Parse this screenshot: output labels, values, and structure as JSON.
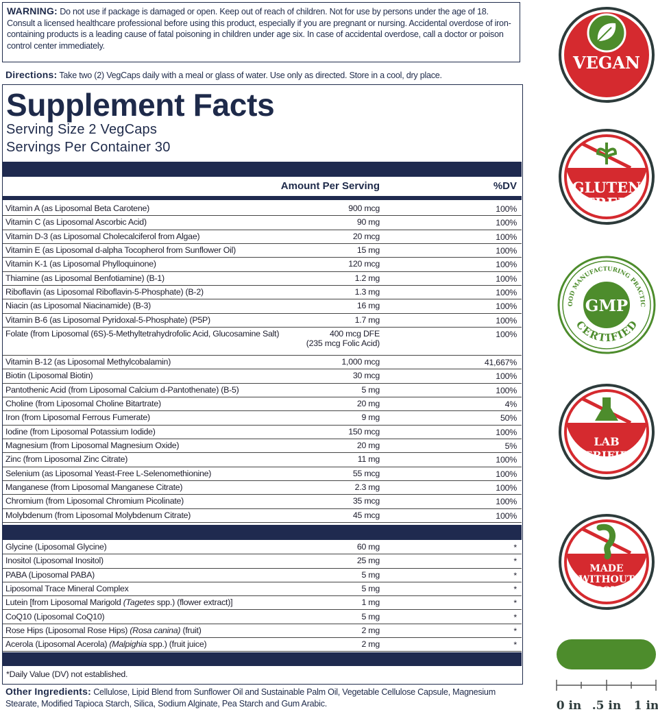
{
  "warning": {
    "label": "WARNING:",
    "text": "Do not use if package is damaged or open. Keep out of reach of children. Not for use by persons under the age of 18. Consult a licensed healthcare professional before using this product, especially if you are pregnant or nursing. Accidental overdose of iron-containing products is a leading cause of fatal poisoning in children under age six. In case of accidental overdose, call a doctor or poison control center immediately."
  },
  "directions": {
    "label": "Directions:",
    "text": "Take two (2) VegCaps daily with a meal or glass of water. Use only as directed. Store in a cool, dry place."
  },
  "facts": {
    "title": "Supplement Facts",
    "serving_size": "Serving Size 2 VegCaps",
    "servings_per_container": "Servings Per Container 30",
    "header_amount": "Amount Per Serving",
    "header_dv": "%DV",
    "section1": [
      {
        "name": "Vitamin A (as Liposomal Beta Carotene)",
        "amount": "900 mcg",
        "dv": "100%"
      },
      {
        "name": "Vitamin C (as Liposomal Ascorbic Acid)",
        "amount": "90 mg",
        "dv": "100%"
      },
      {
        "name": "Vitamin D-3 (as Liposomal Cholecalciferol from Algae)",
        "amount": "20 mcg",
        "dv": "100%"
      },
      {
        "name": "Vitamin E (as Liposomal d-alpha Tocopherol from Sunflower Oil)",
        "amount": "15 mg",
        "dv": "100%"
      },
      {
        "name": "Vitamin K-1 (as Liposomal Phylloquinone)",
        "amount": "120 mcg",
        "dv": "100%"
      },
      {
        "name": "Thiamine (as Liposomal Benfotiamine) (B-1)",
        "amount": "1.2 mg",
        "dv": "100%"
      },
      {
        "name": "Riboflavin (as Liposomal Riboflavin-5-Phosphate) (B-2)",
        "amount": "1.3 mg",
        "dv": "100%"
      },
      {
        "name": "Niacin (as Liposomal Niacinamide) (B-3)",
        "amount": "16 mg",
        "dv": "100%"
      },
      {
        "name": "Vitamin B-6 (as Liposomal Pyridoxal-5-Phosphate) (P5P)",
        "amount": "1.7 mg",
        "dv": "100%"
      },
      {
        "name": "Folate (from Liposomal (6S)-5-Methyltetrahydrofolic Acid, Glucosamine Salt)",
        "amount": "400 mcg DFE",
        "amount_note": "(235 mcg Folic Acid)",
        "dv": "100%"
      },
      {
        "name": "Vitamin B-12 (as Liposomal Methylcobalamin)",
        "amount": "1,000 mcg",
        "dv": "41,667%"
      },
      {
        "name": "Biotin (Liposomal Biotin)",
        "amount": "30 mcg",
        "dv": "100%"
      },
      {
        "name": "Pantothenic Acid (from Liposomal Calcium d-Pantothenate) (B-5)",
        "amount": "5 mg",
        "dv": "100%"
      },
      {
        "name": "Choline (from Liposomal Choline Bitartrate)",
        "amount": "20 mg",
        "dv": "4%"
      },
      {
        "name": "Iron (from Liposomal Ferrous Fumerate)",
        "amount": "9 mg",
        "dv": "50%"
      },
      {
        "name": "Iodine (from Liposomal Potassium Iodide)",
        "amount": "150 mcg",
        "dv": "100%"
      },
      {
        "name": "Magnesium (from Liposomal Magnesium Oxide)",
        "amount": "20 mg",
        "dv": "5%"
      },
      {
        "name": "Zinc (from Liposomal Zinc Citrate)",
        "amount": "11 mg",
        "dv": "100%"
      },
      {
        "name": "Selenium (as Liposomal Yeast-Free L-Selenomethionine)",
        "amount": "55 mcg",
        "dv": "100%"
      },
      {
        "name": "Manganese (from Liposomal Manganese Citrate)",
        "amount": "2.3 mg",
        "dv": "100%"
      },
      {
        "name": "Chromium (from Liposomal Chromium Picolinate)",
        "amount": "35 mcg",
        "dv": "100%"
      },
      {
        "name": "Molybdenum (from Liposomal Molybdenum Citrate)",
        "amount": "45 mcg",
        "dv": "100%"
      }
    ],
    "section2": [
      {
        "name": "Glycine (Liposomal Glycine)",
        "amount": "60 mg",
        "dv": "*"
      },
      {
        "name": "Inositol (Liposomal Inositol)",
        "amount": "25 mg",
        "dv": "*"
      },
      {
        "name": "PABA (Liposomal PABA)",
        "amount": "5 mg",
        "dv": "*"
      },
      {
        "name": "Liposomal Trace Mineral Complex",
        "amount": "5 mg",
        "dv": "*"
      },
      {
        "name": [
          {
            "text": "Lutein [from Liposomal Marigold "
          },
          {
            "text": "(Tagetes",
            "italic": true
          },
          {
            "text": " spp.) (flower extract)]"
          }
        ],
        "amount": "1 mg",
        "dv": "*"
      },
      {
        "name": "CoQ10 (Liposomal CoQ10)",
        "amount": "5 mg",
        "dv": "*"
      },
      {
        "name": [
          {
            "text": "Rose Hips (Liposomal Rose Hips) "
          },
          {
            "text": "(Rosa canina)",
            "italic": true
          },
          {
            "text": " (fruit)"
          }
        ],
        "amount": "2 mg",
        "dv": "*"
      },
      {
        "name": [
          {
            "text": "Acerola (Liposomal Acerola) "
          },
          {
            "text": "(Malpighia",
            "italic": true
          },
          {
            "text": " spp.) (fruit juice)"
          }
        ],
        "amount": "2 mg",
        "dv": "*"
      }
    ],
    "footnote": "*Daily Value (DV) not established."
  },
  "other_ingredients": {
    "label": "Other Ingredients:",
    "text": "Cellulose, Lipid Blend from Sunflower Oil and Sustainable Palm Oil, Vegetable Cellulose Capsule, Magnesium Stearate, Modified Tapioca Starch, Silica, Sodium Alginate, Pea Starch and Gum Arabic."
  },
  "badges": {
    "vegan": "VEGAN",
    "gluten_free": [
      "GLUTEN",
      "FREE"
    ],
    "gmp": {
      "ring_top": "GOOD MANUFACTURING PRACTICE",
      "center": "GMP",
      "ring_bottom": "CERTIFIED"
    },
    "lab_verified": [
      "LAB",
      "VERIFIED"
    ],
    "soy": [
      "MADE",
      "WITHOUT",
      "SOY"
    ]
  },
  "ruler": {
    "labels": [
      "0 in",
      ".5 in",
      "1 in"
    ]
  }
}
